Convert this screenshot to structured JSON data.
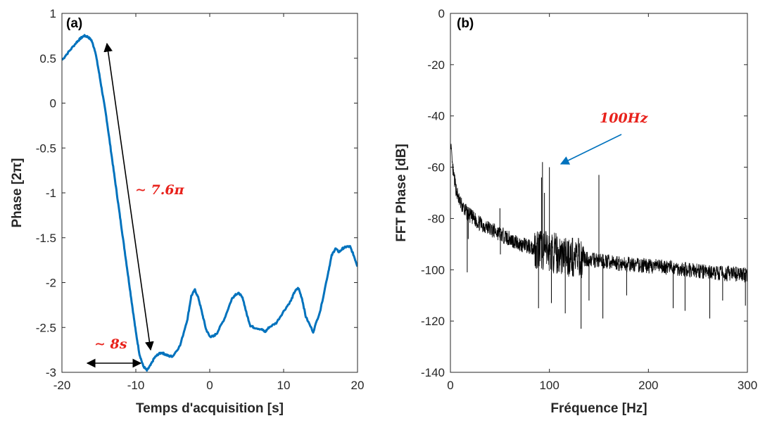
{
  "chart_data": [
    {
      "type": "line",
      "panel_label": "(a)",
      "xlabel": "Temps d'acquisition [s]",
      "ylabel": "Phase [2π]",
      "xlim": [
        -20,
        20
      ],
      "ylim": [
        -3,
        1
      ],
      "xticks": [
        -20,
        -10,
        0,
        10,
        20
      ],
      "yticks": [
        1,
        0.5,
        0,
        -0.5,
        -1,
        -1.5,
        -2,
        -2.5,
        -3
      ],
      "series_color": "#0072BD",
      "series": [
        {
          "x": [
            -20,
            -19,
            -18,
            -17.5,
            -17,
            -16.5,
            -16,
            -15.5,
            -15,
            -14.5,
            -14,
            -13.5,
            -13,
            -12.5,
            -12,
            -11.5,
            -11,
            -10.5,
            -10,
            -9.5,
            -9,
            -8.5,
            -8,
            -7.5,
            -7,
            -6.5,
            -6,
            -5.5,
            -5,
            -4,
            -3,
            -2.5,
            -2,
            -1.5,
            -1,
            -0.5,
            0,
            0.5,
            1,
            2,
            3,
            3.5,
            4,
            4.5,
            5,
            5.5,
            6,
            7,
            7.5,
            8,
            9,
            10,
            11,
            11.5,
            12,
            12.5,
            13,
            14,
            15,
            16,
            16.5,
            17,
            17.5,
            18,
            18.5,
            19,
            19.5,
            20
          ],
          "y": [
            0.48,
            0.58,
            0.68,
            0.72,
            0.75,
            0.74,
            0.7,
            0.58,
            0.35,
            0.1,
            -0.15,
            -0.45,
            -0.75,
            -1.05,
            -1.35,
            -1.65,
            -1.95,
            -2.25,
            -2.55,
            -2.8,
            -2.93,
            -2.98,
            -2.92,
            -2.84,
            -2.8,
            -2.78,
            -2.8,
            -2.82,
            -2.82,
            -2.7,
            -2.4,
            -2.15,
            -2.08,
            -2.18,
            -2.35,
            -2.52,
            -2.6,
            -2.6,
            -2.56,
            -2.4,
            -2.18,
            -2.13,
            -2.12,
            -2.18,
            -2.35,
            -2.48,
            -2.5,
            -2.52,
            -2.55,
            -2.5,
            -2.45,
            -2.32,
            -2.2,
            -2.1,
            -2.06,
            -2.18,
            -2.38,
            -2.55,
            -2.3,
            -1.9,
            -1.7,
            -1.62,
            -1.66,
            -1.62,
            -1.6,
            -1.6,
            -1.7,
            -1.82
          ]
        }
      ],
      "annotations": [
        {
          "text": "∼ 7.6π",
          "color": "#E8211B"
        },
        {
          "text": "∼ 8s",
          "color": "#E8211B"
        }
      ]
    },
    {
      "type": "line",
      "panel_label": "(b)",
      "xlabel": "Fréquence [Hz]",
      "ylabel": "FFT Phase [dB]",
      "xlim": [
        0,
        300
      ],
      "ylim": [
        -140,
        0
      ],
      "xticks": [
        0,
        100,
        200,
        300
      ],
      "yticks": [
        0,
        -20,
        -40,
        -60,
        -80,
        -100,
        -120,
        -140
      ],
      "series_color": "#000000",
      "envelope": {
        "x": [
          0.5,
          1,
          2,
          4,
          6,
          8,
          10,
          15,
          20,
          30,
          40,
          50,
          60,
          70,
          80,
          90,
          100,
          110,
          120,
          140,
          160,
          180,
          200,
          220,
          240,
          260,
          280,
          300
        ],
        "y": [
          -50,
          -55,
          -60,
          -65,
          -69,
          -72,
          -74,
          -77,
          -79,
          -82,
          -84,
          -86,
          -88,
          -90,
          -91,
          -92,
          -93,
          -94,
          -95,
          -96,
          -97,
          -98,
          -98.5,
          -99,
          -100,
          -101,
          -101.5,
          -102
        ]
      },
      "spikes": [
        {
          "x": 17,
          "y": -101
        },
        {
          "x": 18,
          "y": -88
        },
        {
          "x": 50,
          "y": -76
        },
        {
          "x": 50.5,
          "y": -94
        },
        {
          "x": 89,
          "y": -115
        },
        {
          "x": 92,
          "y": -64
        },
        {
          "x": 93,
          "y": -58
        },
        {
          "x": 95,
          "y": -70
        },
        {
          "x": 100,
          "y": -60
        },
        {
          "x": 102,
          "y": -113
        },
        {
          "x": 116,
          "y": -117
        },
        {
          "x": 132,
          "y": -123
        },
        {
          "x": 140,
          "y": -112
        },
        {
          "x": 150,
          "y": -63
        },
        {
          "x": 154,
          "y": -119
        },
        {
          "x": 178,
          "y": -110
        },
        {
          "x": 225,
          "y": -115
        },
        {
          "x": 237,
          "y": -116
        },
        {
          "x": 262,
          "y": -119
        },
        {
          "x": 275,
          "y": -112
        },
        {
          "x": 298,
          "y": -114
        }
      ],
      "annotations": [
        {
          "text": "100Hz",
          "color": "#E8211B"
        }
      ],
      "arrow_color": "#0072BD"
    }
  ]
}
